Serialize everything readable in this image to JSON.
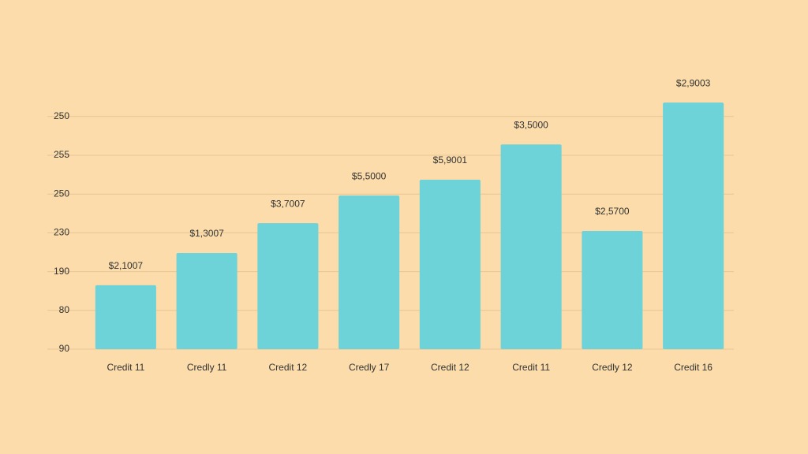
{
  "chart_data": {
    "type": "bar",
    "categories": [
      "Credit 11",
      "Credly 11",
      "Credit 12",
      "Credly 17",
      "Credit 12",
      "Credit 11",
      "Credly 12",
      "Credit 16"
    ],
    "values": [
      1.65,
      2.48,
      3.25,
      3.96,
      4.37,
      5.28,
      3.05,
      6.36
    ],
    "annotations": [
      "$2,1007",
      "$1,3007",
      "$3,7007",
      "$5,5000",
      "$5,9001",
      "$3,5000",
      "$2,5700",
      "$2,9003"
    ],
    "color": "#6dd3d9",
    "ylim": [
      0,
      6.6
    ],
    "yticks": [
      {
        "value": 0,
        "label": "90"
      },
      {
        "value": 1,
        "label": "80"
      },
      {
        "value": 2,
        "label": "190"
      },
      {
        "value": 3,
        "label": "230"
      },
      {
        "value": 4,
        "label": "250"
      },
      {
        "value": 5,
        "label": "255"
      },
      {
        "value": 6,
        "label": "250"
      }
    ],
    "grid": true
  }
}
